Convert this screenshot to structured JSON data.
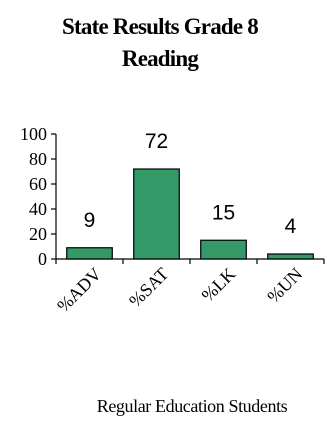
{
  "chart_data": {
    "type": "bar",
    "title_lines": [
      "State Results Grade 8",
      "Reading"
    ],
    "categories": [
      "%ADV",
      "%SAT",
      "%LK",
      "%UN"
    ],
    "values": [
      9,
      72,
      15,
      4
    ],
    "data_labels": [
      "9",
      "72",
      "15",
      "4"
    ],
    "xlabel": "Regular Education Students",
    "ylabel": "",
    "ylim": [
      0,
      100
    ],
    "yticks": [
      0,
      20,
      40,
      60,
      80,
      100
    ],
    "ytick_labels": [
      "0",
      "20",
      "40",
      "60",
      "80",
      "100"
    ],
    "bar_color": "#339966",
    "grid": false,
    "legend": "none"
  }
}
